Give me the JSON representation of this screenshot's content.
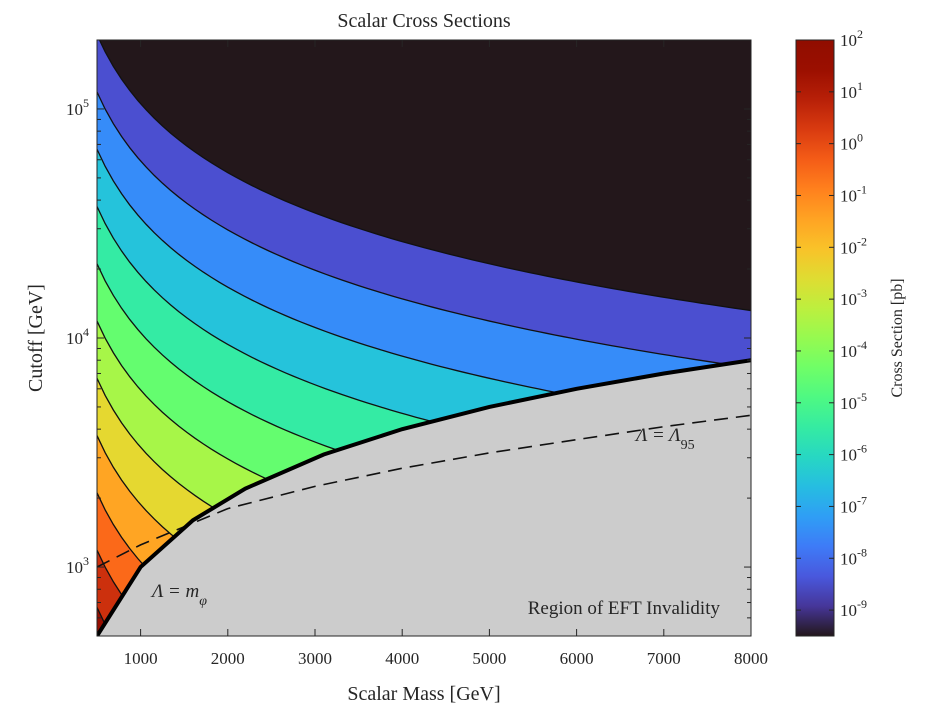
{
  "chart_data": {
    "type": "heatmap",
    "subtype": "filled-contour",
    "title": "Scalar Cross Sections",
    "xlabel": "Scalar Mass [GeV]",
    "ylabel": "Cutoff [GeV]",
    "xlim": [
      500,
      8000
    ],
    "ylim": [
      500,
      200000
    ],
    "yscale": "log",
    "xticks": [
      1000,
      2000,
      3000,
      4000,
      5000,
      6000,
      7000,
      8000
    ],
    "xtick_labels": [
      "1000",
      "2000",
      "3000",
      "4000",
      "5000",
      "6000",
      "7000",
      "8000"
    ],
    "yticks": [
      1000,
      10000,
      100000
    ],
    "ytick_labels": [
      {
        "base": "10",
        "exp": "3"
      },
      {
        "base": "10",
        "exp": "4"
      },
      {
        "base": "10",
        "exp": "5"
      }
    ],
    "grid": false,
    "colorbar": {
      "label": "Cross Section [pb]",
      "scale": "log",
      "colormap": "turbo",
      "range_exp": [
        -9.5,
        2
      ],
      "ticks": [
        {
          "exp": 2,
          "label_base": "10",
          "label_exp": "2"
        },
        {
          "exp": 1,
          "label_base": "10",
          "label_exp": "1"
        },
        {
          "exp": 0,
          "label_base": "10",
          "label_exp": "0"
        },
        {
          "exp": -1,
          "label_base": "10",
          "label_exp": "-1"
        },
        {
          "exp": -2,
          "label_base": "10",
          "label_exp": "-2"
        },
        {
          "exp": -3,
          "label_base": "10",
          "label_exp": "-3"
        },
        {
          "exp": -4,
          "label_base": "10",
          "label_exp": "-4"
        },
        {
          "exp": -5,
          "label_base": "10",
          "label_exp": "-5"
        },
        {
          "exp": -6,
          "label_base": "10",
          "label_exp": "-6"
        },
        {
          "exp": -7,
          "label_base": "10",
          "label_exp": "-7"
        },
        {
          "exp": -8,
          "label_base": "10",
          "label_exp": "-8"
        },
        {
          "exp": -9,
          "label_base": "10",
          "label_exp": "-9"
        }
      ]
    },
    "contour_level_exponents": [
      1,
      0,
      -1,
      -2,
      -3,
      -4,
      -5,
      -6,
      -7,
      -8,
      -9
    ],
    "cross_section_model": {
      "exp_at_reference": 1.5,
      "reference_mass": 500,
      "reference_cutoff": 500,
      "mass_exponent": -4,
      "cutoff_exponent": -4
    },
    "invalid_region": {
      "label": "Region of EFT Invalidity",
      "fill": "#cccccc",
      "boundary_name": "Λ = m_φ",
      "boundary": [
        {
          "x": 500,
          "y": 500
        },
        {
          "x": 1000,
          "y": 1000
        },
        {
          "x": 1600,
          "y": 1600
        },
        {
          "x": 2200,
          "y": 2200
        },
        {
          "x": 3100,
          "y": 3100
        },
        {
          "x": 4000,
          "y": 4000
        },
        {
          "x": 5000,
          "y": 5000
        },
        {
          "x": 6000,
          "y": 6000
        },
        {
          "x": 7000,
          "y": 7000
        },
        {
          "x": 8000,
          "y": 8000
        }
      ]
    },
    "lambda95_line": {
      "name": "Λ = Λ_95",
      "style": "dashed",
      "points": [
        {
          "x": 500,
          "y": 1000
        },
        {
          "x": 1000,
          "y": 1250
        },
        {
          "x": 2000,
          "y": 1800
        },
        {
          "x": 3000,
          "y": 2250
        },
        {
          "x": 4000,
          "y": 2700
        },
        {
          "x": 5000,
          "y": 3150
        },
        {
          "x": 6000,
          "y": 3600
        },
        {
          "x": 7000,
          "y": 4100
        },
        {
          "x": 8000,
          "y": 4600
        }
      ]
    },
    "annotations": {
      "lambda_m_main": "Λ = m",
      "lambda_m_sub": "φ",
      "lambda95_main": "Λ = Λ",
      "lambda95_sub": "95",
      "region": "Region of EFT Invalidity"
    }
  }
}
